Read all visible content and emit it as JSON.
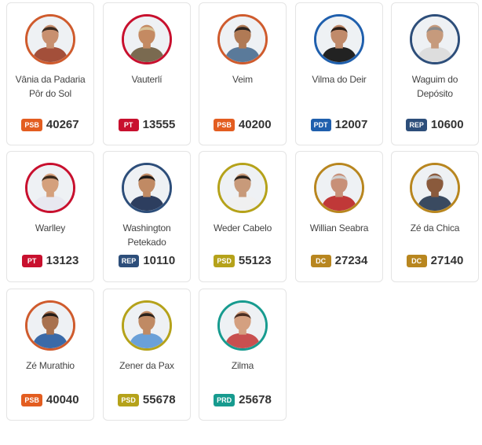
{
  "candidates": [
    {
      "name": "Vânia da Padaria Pôr do Sol",
      "party": "PSB",
      "number": "40267",
      "party_color": "#e35d20",
      "ring_color": "#cf5b2d",
      "skin": "#c89070",
      "hair": "#3a2a20",
      "shirt": "#a34f3a"
    },
    {
      "name": "Vauterlí",
      "party": "PT",
      "number": "13555",
      "party_color": "#c8102e",
      "ring_color": "#c8102e",
      "skin": "#c48a62",
      "hair": "#d8c49a",
      "shirt": "#7a6a50"
    },
    {
      "name": "Veim",
      "party": "PSB",
      "number": "40200",
      "party_color": "#e35d20",
      "ring_color": "#cf5b2d",
      "skin": "#b07a55",
      "hair": "#2a2320",
      "shirt": "#5a7a9a"
    },
    {
      "name": "Vilma do Deir",
      "party": "PDT",
      "number": "12007",
      "party_color": "#1f5fad",
      "ring_color": "#1f5fad",
      "skin": "#c08a6a",
      "hair": "#2a1d17",
      "shirt": "#222222"
    },
    {
      "name": "Waguim do Depósito",
      "party": "REP",
      "number": "10600",
      "party_color": "#2d4e7a",
      "ring_color": "#2d4e7a",
      "skin": "#c69a7c",
      "hair": "#8a8a8a",
      "shirt": "#dddddd"
    },
    {
      "name": "Warlley",
      "party": "PT",
      "number": "13123",
      "party_color": "#c8102e",
      "ring_color": "#c8102e",
      "skin": "#d4a07c",
      "hair": "#3a2a1c",
      "shirt": "#e8e8f0"
    },
    {
      "name": "Washington Petekado",
      "party": "REP",
      "number": "10110",
      "party_color": "#2d4e7a",
      "ring_color": "#2d4e7a",
      "skin": "#c08a64",
      "hair": "#1f1a17",
      "shirt": "#2d3e5f"
    },
    {
      "name": "Weder Cabelo",
      "party": "PSD",
      "number": "55123",
      "party_color": "#b5a21a",
      "ring_color": "#b5a21a",
      "skin": "#c89a7a",
      "hair": "#2a221c",
      "shirt": "#f0f0f0"
    },
    {
      "name": "Willian Seabra",
      "party": "DC",
      "number": "27234",
      "party_color": "#b8861f",
      "ring_color": "#b8861f",
      "skin": "#c89078",
      "hair": "#cfcfcf",
      "shirt": "#c03838"
    },
    {
      "name": "Zé da Chica",
      "party": "DC",
      "number": "27140",
      "party_color": "#b8861f",
      "ring_color": "#b8861f",
      "skin": "#8a5a3c",
      "hair": "#bbbbbb",
      "shirt": "#3a4a60"
    },
    {
      "name": "Zé Murathio",
      "party": "PSB",
      "number": "40040",
      "party_color": "#e35d20",
      "ring_color": "#cf5b2d",
      "skin": "#a8714e",
      "hair": "#241c17",
      "shirt": "#3a6aa8"
    },
    {
      "name": "Zener da Pax",
      "party": "PSD",
      "number": "55678",
      "party_color": "#b5a21a",
      "ring_color": "#b5a21a",
      "skin": "#c08a64",
      "hair": "#2a221c",
      "shirt": "#6aa0d8"
    },
    {
      "name": "Zilma",
      "party": "PRD",
      "number": "25678",
      "party_color": "#179b8f",
      "ring_color": "#179b8f",
      "skin": "#d4a080",
      "hair": "#4a2e22",
      "shirt": "#c85050"
    }
  ]
}
